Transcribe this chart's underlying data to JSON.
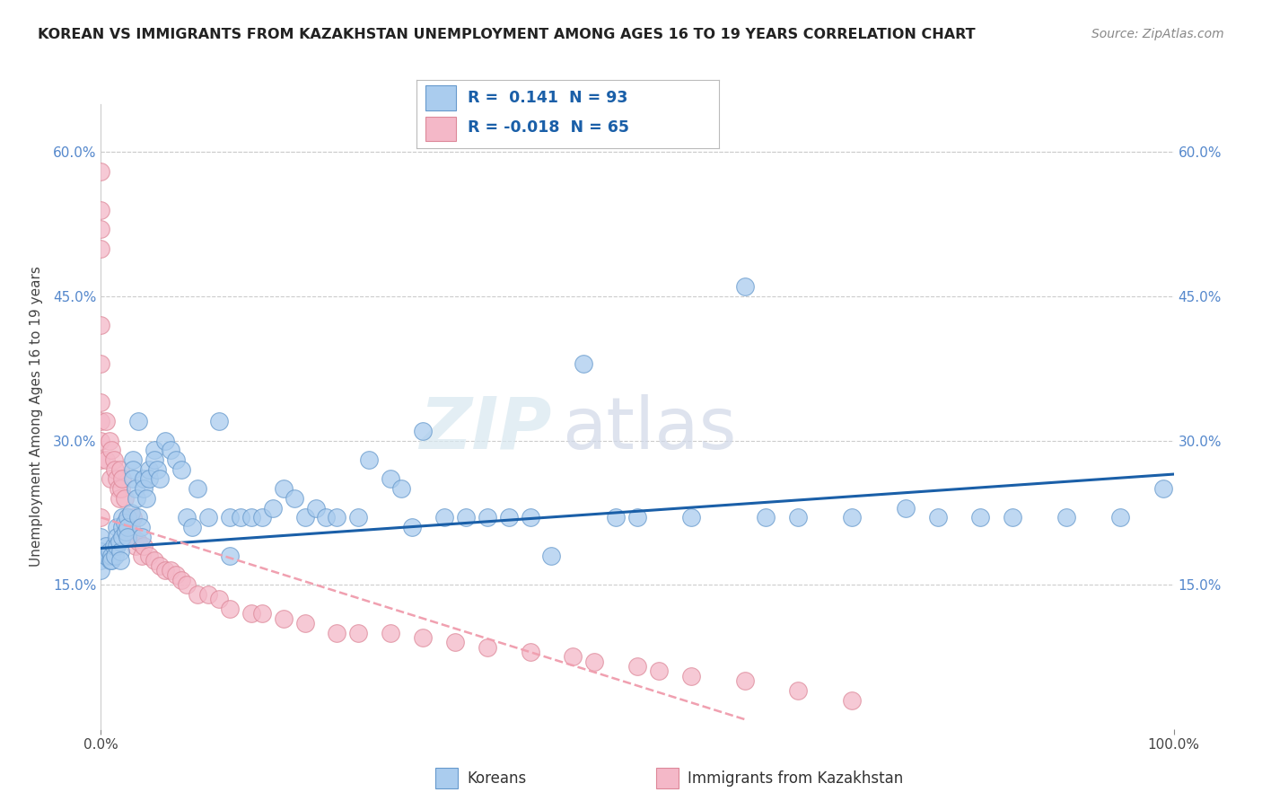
{
  "title": "KOREAN VS IMMIGRANTS FROM KAZAKHSTAN UNEMPLOYMENT AMONG AGES 16 TO 19 YEARS CORRELATION CHART",
  "source": "Source: ZipAtlas.com",
  "ylabel": "Unemployment Among Ages 16 to 19 years",
  "xlim": [
    0.0,
    1.0
  ],
  "ylim": [
    0.0,
    0.65
  ],
  "ytick_positions": [
    0.15,
    0.3,
    0.45,
    0.6
  ],
  "ytick_labels": [
    "15.0%",
    "30.0%",
    "45.0%",
    "60.0%"
  ],
  "xtick_positions": [
    0.0,
    1.0
  ],
  "xtick_labels": [
    "0.0%",
    "100.0%"
  ],
  "grid_color": "#cccccc",
  "background_color": "#ffffff",
  "korean_color": "#aaccee",
  "kazakhstan_color": "#f4b8c8",
  "korean_edge_color": "#6699cc",
  "kazakhstan_edge_color": "#dd8899",
  "trend_korean_color": "#1a5fa8",
  "trend_kazakhstan_color": "#f0a0b0",
  "legend_korean_label": "Koreans",
  "legend_kazakhstan_label": "Immigrants from Kazakhstan",
  "r_korean": 0.141,
  "n_korean": 93,
  "r_kazakhstan": -0.018,
  "n_kazakhstan": 65,
  "watermark_zip": "ZIP",
  "watermark_atlas": "atlas",
  "korean_x": [
    0.0,
    0.0,
    0.0,
    0.0,
    0.005,
    0.005,
    0.008,
    0.009,
    0.01,
    0.01,
    0.012,
    0.013,
    0.015,
    0.015,
    0.015,
    0.017,
    0.018,
    0.018,
    0.02,
    0.02,
    0.02,
    0.022,
    0.023,
    0.025,
    0.025,
    0.025,
    0.028,
    0.03,
    0.03,
    0.03,
    0.032,
    0.033,
    0.035,
    0.035,
    0.037,
    0.038,
    0.04,
    0.04,
    0.042,
    0.045,
    0.045,
    0.05,
    0.05,
    0.052,
    0.055,
    0.06,
    0.065,
    0.07,
    0.075,
    0.08,
    0.085,
    0.09,
    0.1,
    0.11,
    0.12,
    0.12,
    0.13,
    0.14,
    0.15,
    0.16,
    0.17,
    0.18,
    0.19,
    0.2,
    0.21,
    0.22,
    0.24,
    0.25,
    0.27,
    0.28,
    0.29,
    0.3,
    0.32,
    0.34,
    0.36,
    0.38,
    0.4,
    0.42,
    0.45,
    0.48,
    0.5,
    0.55,
    0.6,
    0.62,
    0.65,
    0.7,
    0.75,
    0.78,
    0.82,
    0.85,
    0.9,
    0.95,
    0.99
  ],
  "korean_y": [
    0.2,
    0.185,
    0.175,
    0.165,
    0.19,
    0.18,
    0.185,
    0.175,
    0.18,
    0.175,
    0.19,
    0.18,
    0.21,
    0.2,
    0.19,
    0.195,
    0.185,
    0.175,
    0.22,
    0.21,
    0.2,
    0.215,
    0.205,
    0.22,
    0.21,
    0.2,
    0.225,
    0.28,
    0.27,
    0.26,
    0.25,
    0.24,
    0.32,
    0.22,
    0.21,
    0.2,
    0.26,
    0.25,
    0.24,
    0.27,
    0.26,
    0.29,
    0.28,
    0.27,
    0.26,
    0.3,
    0.29,
    0.28,
    0.27,
    0.22,
    0.21,
    0.25,
    0.22,
    0.32,
    0.18,
    0.22,
    0.22,
    0.22,
    0.22,
    0.23,
    0.25,
    0.24,
    0.22,
    0.23,
    0.22,
    0.22,
    0.22,
    0.28,
    0.26,
    0.25,
    0.21,
    0.31,
    0.22,
    0.22,
    0.22,
    0.22,
    0.22,
    0.18,
    0.38,
    0.22,
    0.22,
    0.22,
    0.46,
    0.22,
    0.22,
    0.22,
    0.23,
    0.22,
    0.22,
    0.22,
    0.22,
    0.22,
    0.25
  ],
  "kazakhstan_x": [
    0.0,
    0.0,
    0.0,
    0.0,
    0.0,
    0.0,
    0.0,
    0.0,
    0.0,
    0.0,
    0.0,
    0.005,
    0.005,
    0.008,
    0.009,
    0.01,
    0.012,
    0.013,
    0.015,
    0.016,
    0.017,
    0.018,
    0.019,
    0.02,
    0.022,
    0.025,
    0.025,
    0.028,
    0.03,
    0.03,
    0.032,
    0.035,
    0.038,
    0.04,
    0.045,
    0.05,
    0.055,
    0.06,
    0.065,
    0.07,
    0.075,
    0.08,
    0.09,
    0.1,
    0.11,
    0.12,
    0.14,
    0.15,
    0.17,
    0.19,
    0.22,
    0.24,
    0.27,
    0.3,
    0.33,
    0.36,
    0.4,
    0.44,
    0.46,
    0.5,
    0.52,
    0.55,
    0.6,
    0.65,
    0.7
  ],
  "kazakhstan_y": [
    0.58,
    0.54,
    0.52,
    0.5,
    0.42,
    0.38,
    0.34,
    0.32,
    0.3,
    0.28,
    0.22,
    0.32,
    0.28,
    0.3,
    0.26,
    0.29,
    0.28,
    0.27,
    0.26,
    0.25,
    0.24,
    0.27,
    0.25,
    0.26,
    0.24,
    0.22,
    0.2,
    0.21,
    0.22,
    0.2,
    0.19,
    0.195,
    0.18,
    0.19,
    0.18,
    0.175,
    0.17,
    0.165,
    0.165,
    0.16,
    0.155,
    0.15,
    0.14,
    0.14,
    0.135,
    0.125,
    0.12,
    0.12,
    0.115,
    0.11,
    0.1,
    0.1,
    0.1,
    0.095,
    0.09,
    0.085,
    0.08,
    0.075,
    0.07,
    0.065,
    0.06,
    0.055,
    0.05,
    0.04,
    0.03
  ],
  "trend_kor_x0": 0.0,
  "trend_kor_x1": 1.0,
  "trend_kor_y0": 0.188,
  "trend_kor_y1": 0.265,
  "trend_kaz_x0": 0.0,
  "trend_kaz_x1": 0.6,
  "trend_kaz_y0": 0.22,
  "trend_kaz_y1": 0.01
}
